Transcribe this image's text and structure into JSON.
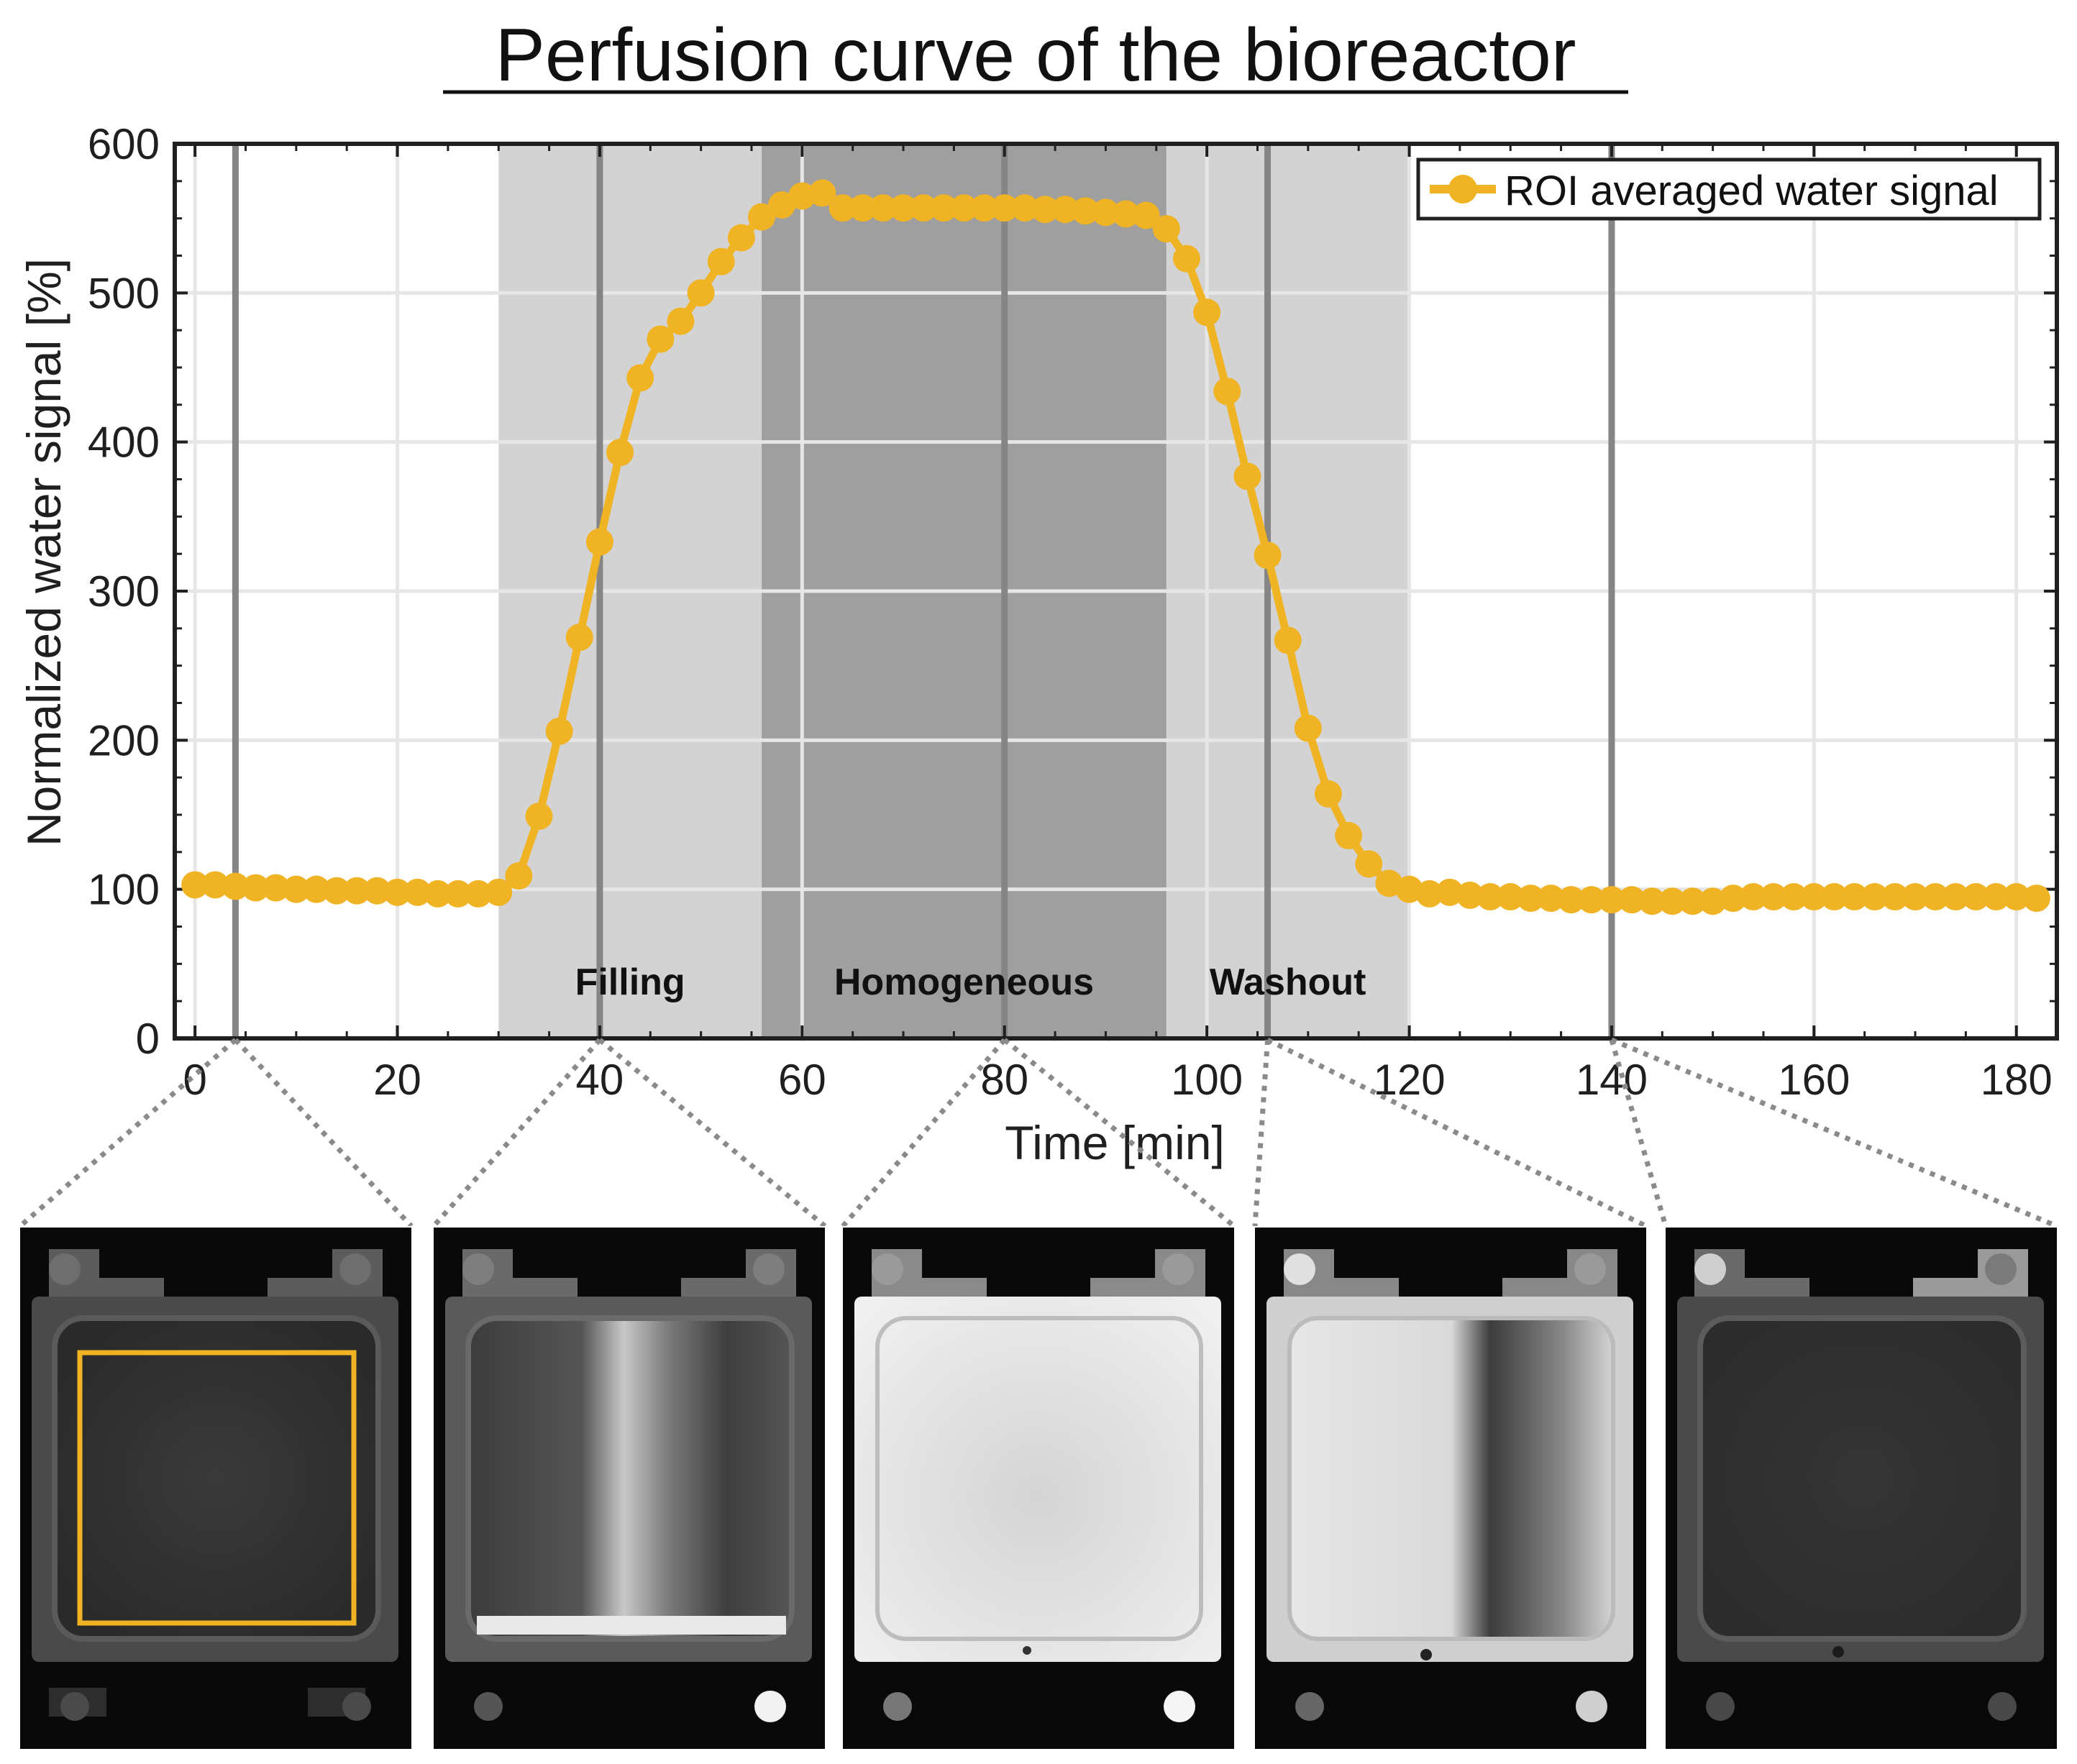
{
  "figure": {
    "title": "Perfusion curve of the bioreactor"
  },
  "colors": {
    "series": "#F0B323",
    "phase_light": "#d3d3d3",
    "phase_dark": "#9f9f9f",
    "grid": "#e6e6e6",
    "marker_line": "#858585",
    "connector": "#8a8a8a",
    "axis": "#1f1f1f"
  },
  "chart_data": {
    "type": "line",
    "title": "Perfusion curve of the bioreactor",
    "xlabel": "Time [min]",
    "ylabel": "Normalized water signal [%]",
    "xlim": [
      -2,
      184
    ],
    "ylim": [
      0,
      600
    ],
    "xticks": [
      0,
      20,
      40,
      60,
      80,
      100,
      120,
      140,
      160,
      180
    ],
    "yticks": [
      0,
      100,
      200,
      300,
      400,
      500,
      600
    ],
    "grid": true,
    "legend": {
      "entries": [
        "ROI averaged water signal"
      ],
      "position": "top-right"
    },
    "phases": [
      {
        "label": "Filling",
        "x_start": 30,
        "x_end": 56,
        "shade": "light"
      },
      {
        "label": "Homogeneous",
        "x_start": 56,
        "x_end": 96,
        "shade": "dark"
      },
      {
        "label": "Washout",
        "x_start": 96,
        "x_end": 120,
        "shade": "light"
      }
    ],
    "snapshot_times": [
      4,
      40,
      80,
      106,
      140
    ],
    "series": [
      {
        "name": "ROI averaged water signal",
        "x": [
          0,
          2,
          4,
          6,
          8,
          10,
          12,
          14,
          16,
          18,
          20,
          22,
          24,
          26,
          28,
          30,
          32,
          34,
          36,
          38,
          40,
          42,
          44,
          46,
          48,
          50,
          52,
          54,
          56,
          58,
          60,
          62,
          64,
          66,
          68,
          70,
          72,
          74,
          76,
          78,
          80,
          82,
          84,
          86,
          88,
          90,
          92,
          94,
          96,
          98,
          100,
          102,
          104,
          106,
          108,
          110,
          112,
          114,
          116,
          118,
          120,
          122,
          124,
          126,
          128,
          130,
          132,
          134,
          136,
          138,
          140,
          142,
          144,
          146,
          148,
          150,
          152,
          154,
          156,
          158,
          160,
          162,
          164,
          166,
          168,
          170,
          172,
          174,
          176,
          178,
          180,
          182
        ],
        "y": [
          103,
          103,
          102,
          101,
          101,
          100,
          100,
          99,
          99,
          99,
          98,
          98,
          97,
          97,
          97,
          98,
          109,
          149,
          206,
          269,
          333,
          393,
          443,
          469,
          481,
          500,
          521,
          537,
          551,
          559,
          565,
          567,
          557,
          557,
          557,
          557,
          557,
          557,
          557,
          557,
          557,
          557,
          556,
          556,
          555,
          554,
          553,
          552,
          543,
          523,
          487,
          434,
          377,
          324,
          267,
          208,
          164,
          136,
          117,
          104,
          100,
          97,
          98,
          96,
          95,
          95,
          94,
          94,
          93,
          93,
          93,
          93,
          92,
          92,
          92,
          92,
          94,
          95,
          95,
          95,
          95,
          95,
          95,
          95,
          95,
          95,
          95,
          95,
          95,
          95,
          95,
          94
        ]
      }
    ]
  },
  "mri_panels": [
    {
      "name": "mri-panel-4min",
      "phase": "baseline",
      "roi_box": true
    },
    {
      "name": "mri-panel-40min",
      "phase": "filling",
      "roi_box": false
    },
    {
      "name": "mri-panel-80min",
      "phase": "homogeneous",
      "roi_box": false
    },
    {
      "name": "mri-panel-106min",
      "phase": "washout",
      "roi_box": false
    },
    {
      "name": "mri-panel-140min",
      "phase": "post",
      "roi_box": false
    }
  ]
}
